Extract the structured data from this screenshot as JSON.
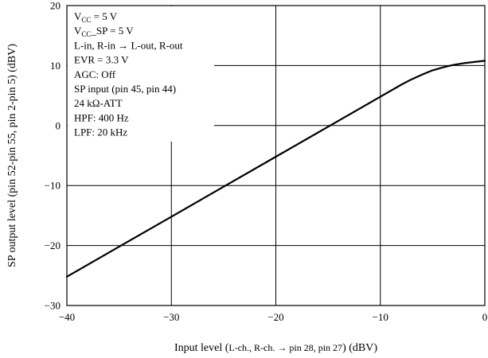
{
  "chart_data": {
    "type": "line",
    "title": "",
    "xlabel": {
      "prefix": "Input level (",
      "detail": "L-ch., R-ch. → pin 28, pin 27",
      "suffix": ")  (dBV)"
    },
    "ylabel": "SP output level (pin 52-pin 55, pin 2-pin 5)  (dBV)",
    "xlim": [
      -40,
      0
    ],
    "ylim": [
      -30,
      20
    ],
    "xticks": [
      -40,
      -30,
      -20,
      -10,
      0
    ],
    "yticks": [
      -30,
      -20,
      -10,
      0,
      10,
      20
    ],
    "xtick_labels": [
      "−40",
      "−30",
      "−20",
      "−10",
      "0"
    ],
    "ytick_labels": [
      "−30",
      "−20",
      "−10",
      "0",
      "10",
      "20"
    ],
    "grid": true,
    "series": [
      {
        "x": [
          -40,
          -35,
          -30,
          -25,
          -20,
          -15,
          -10,
          -8,
          -7,
          -6,
          -5,
          -4,
          -3,
          -2,
          -1,
          0
        ],
        "y": [
          -25.2,
          -20.2,
          -15.2,
          -10.2,
          -5.2,
          -0.2,
          4.8,
          6.8,
          7.7,
          8.5,
          9.2,
          9.7,
          10.1,
          10.4,
          10.6,
          10.8
        ]
      }
    ],
    "conditions": [
      {
        "main": "V",
        "sub": "CC",
        "rest": " = 5 V"
      },
      {
        "main": "V",
        "sub": "CC",
        "rest": "_SP = 5 V"
      },
      {
        "main": "L-in, R-in → L-out, R-out",
        "sub": "",
        "rest": ""
      },
      {
        "main": "EVR = 3.3 V",
        "sub": "",
        "rest": ""
      },
      {
        "main": "AGC: Off",
        "sub": "",
        "rest": ""
      },
      {
        "main": "SP input (pin 45, pin 44)",
        "sub": "",
        "rest": ""
      },
      {
        "main": "24 kΩ-ATT",
        "sub": "",
        "rest": ""
      },
      {
        "main": "HPF: 400 Hz",
        "sub": "",
        "rest": ""
      },
      {
        "main": "LPF: 20 kHz",
        "sub": "",
        "rest": ""
      }
    ]
  }
}
